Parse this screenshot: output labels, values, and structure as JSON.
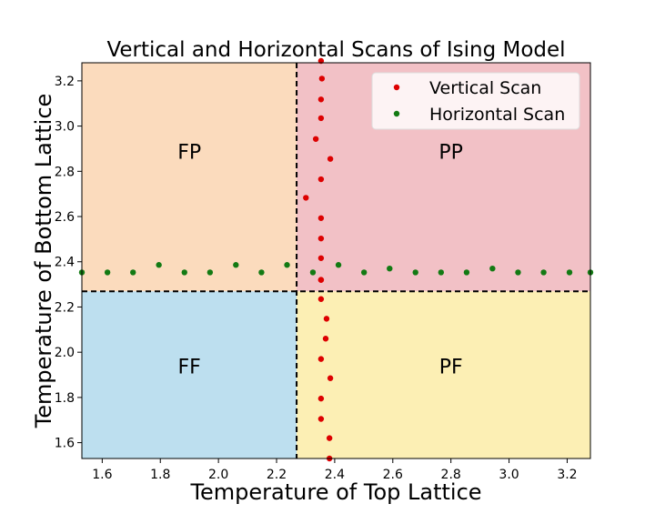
{
  "chart_data": {
    "type": "scatter",
    "title": "Vertical and Horizontal Scans of Ising Model",
    "xlabel": "Temperature of Top Lattice",
    "ylabel": "Temperature of Bottom Lattice",
    "xlim": [
      1.53,
      3.28
    ],
    "ylim": [
      1.53,
      3.28
    ],
    "xticks": [
      "1.6",
      "1.8",
      "2.0",
      "2.2",
      "2.4",
      "2.6",
      "2.8",
      "3.0",
      "3.2"
    ],
    "yticks": [
      "1.6",
      "1.8",
      "2.0",
      "2.2",
      "2.4",
      "2.6",
      "2.8",
      "3.0",
      "3.2"
    ],
    "critical_temperature": 2.269,
    "regions": [
      {
        "label": "FP",
        "color": "#fbdbbd",
        "x": [
          1.53,
          2.269
        ],
        "y": [
          2.269,
          3.28
        ],
        "label_at": [
          1.9,
          2.88
        ]
      },
      {
        "label": "PP",
        "color": "#f2c1c6",
        "x": [
          2.269,
          3.28
        ],
        "y": [
          2.269,
          3.28
        ],
        "label_at": [
          2.8,
          2.88
        ]
      },
      {
        "label": "FF",
        "color": "#bddfef",
        "x": [
          1.53,
          2.269
        ],
        "y": [
          1.53,
          2.269
        ],
        "label_at": [
          1.9,
          1.93
        ]
      },
      {
        "label": "PF",
        "color": "#fcefb4",
        "x": [
          2.269,
          3.28
        ],
        "y": [
          1.53,
          2.269
        ],
        "label_at": [
          2.8,
          1.93
        ]
      }
    ],
    "series": [
      {
        "name": "Vertical Scan",
        "color": "#dd0000",
        "x": [
          2.353,
          2.356,
          2.353,
          2.353,
          2.335,
          2.385,
          2.353,
          2.301,
          2.353,
          2.353,
          2.353,
          2.353,
          2.353,
          2.353,
          2.372,
          2.369,
          2.353,
          2.385,
          2.353,
          2.353,
          2.382,
          2.382
        ],
        "y": [
          3.288,
          3.21,
          3.118,
          3.035,
          2.943,
          2.855,
          2.765,
          2.683,
          2.593,
          2.503,
          2.416,
          2.32,
          2.32,
          2.235,
          2.148,
          2.06,
          1.97,
          1.885,
          1.795,
          1.705,
          1.62,
          1.53
        ]
      },
      {
        "name": "Horizontal Scan",
        "color": "#137a13",
        "x": [
          1.53,
          1.618,
          1.706,
          1.795,
          1.883,
          1.971,
          2.06,
          2.148,
          2.236,
          2.325,
          2.413,
          2.501,
          2.589,
          2.678,
          2.766,
          2.854,
          2.943,
          3.031,
          3.119,
          3.208,
          3.28
        ],
        "y": [
          2.353,
          2.353,
          2.353,
          2.386,
          2.353,
          2.353,
          2.386,
          2.353,
          2.386,
          2.353,
          2.386,
          2.353,
          2.37,
          2.353,
          2.353,
          2.353,
          2.37,
          2.353,
          2.353,
          2.353,
          2.353
        ]
      }
    ],
    "legend": {
      "position": "top-right"
    },
    "grid": false
  }
}
